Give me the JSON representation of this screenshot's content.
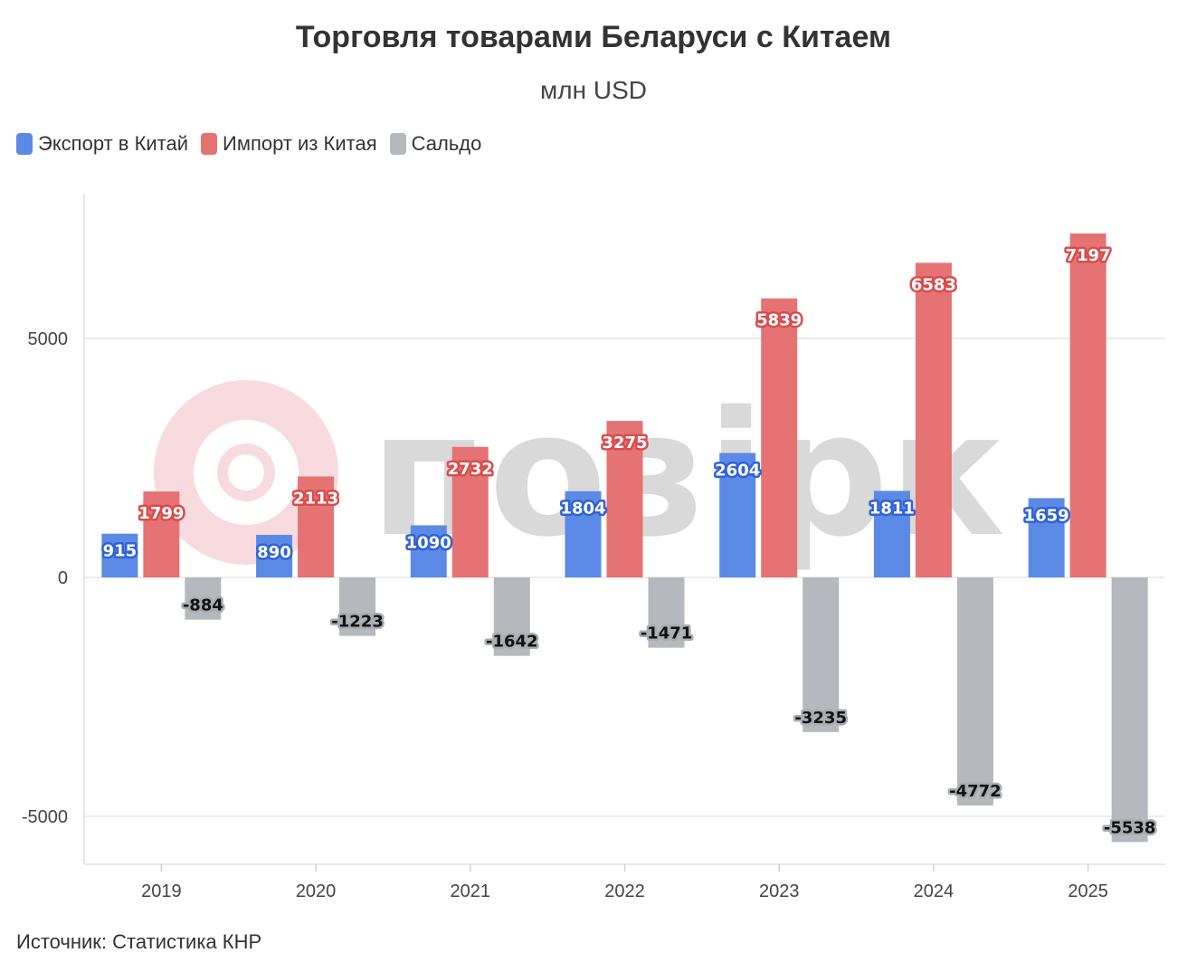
{
  "title": "Торговля товарами Беларуси с Китаем",
  "subtitle": "млн USD",
  "source": "Источник: Статистика КНР",
  "chart_data": {
    "type": "bar",
    "categories": [
      "2019",
      "2020",
      "2021",
      "2022",
      "2023",
      "2024",
      "2025"
    ],
    "series": [
      {
        "name": "Экспорт в Китай",
        "color": "#5b8ae6",
        "label_color": "#2f62d8",
        "values": [
          915,
          890,
          1090,
          1804,
          2604,
          1811,
          1659
        ]
      },
      {
        "name": "Импорт из Китая",
        "color": "#e57373",
        "label_color": "#d94c4c",
        "values": [
          1799,
          2113,
          2732,
          3275,
          5839,
          6583,
          7197
        ]
      },
      {
        "name": "Сальдо",
        "color": "#b5b8bc",
        "label_color": "#9a9da1",
        "values": [
          -884,
          -1223,
          -1642,
          -1471,
          -3235,
          -4772,
          -5538
        ]
      }
    ],
    "y_ticks": [
      5000,
      0,
      -5000
    ],
    "ylim": [
      -6000,
      8000
    ],
    "grid": true,
    "legend": "top-left"
  },
  "watermark": {
    "brand_text": "позірк",
    "logo_color": "#e8808a"
  }
}
